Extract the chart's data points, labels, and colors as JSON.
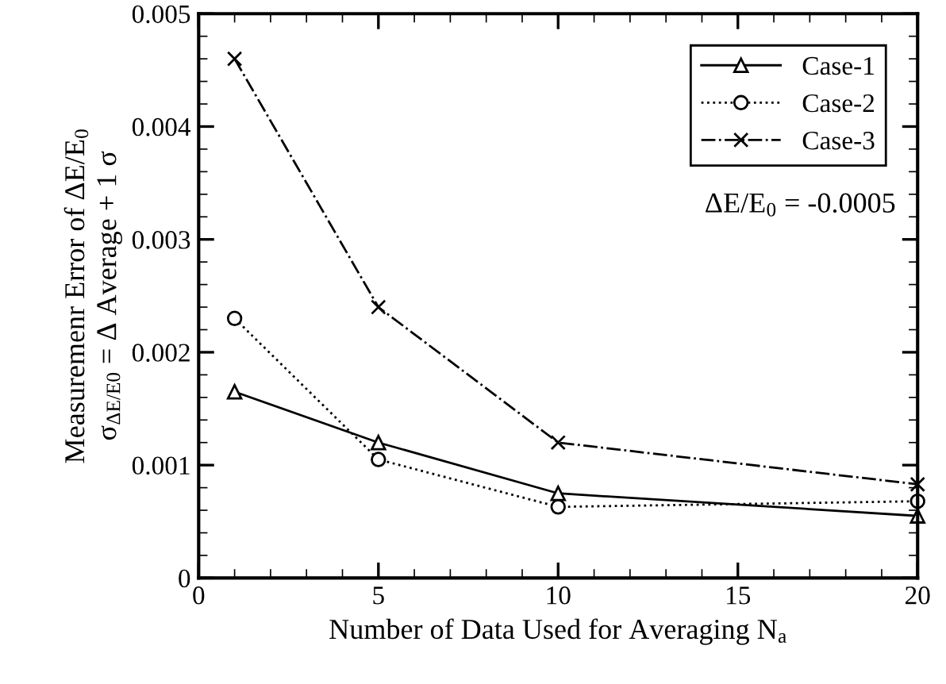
{
  "chart_data": {
    "type": "line",
    "xlabel": "Number of Data Used for Averaging N$_{a}$",
    "ylabel": "Measuremenr Error of ΔE/E$_{0}$\nσ$_{ΔE/E0}$ = Δ Average + 1 σ",
    "x": [
      1,
      5,
      10,
      20
    ],
    "series": [
      {
        "name": "Case-1",
        "color": "#000000",
        "marker": "triangle",
        "line_style": "solid",
        "values": [
          0.00165,
          0.0012,
          0.00075,
          0.00055
        ]
      },
      {
        "name": "Case-2",
        "color": "#000000",
        "marker": "circle",
        "line_style": "dotted",
        "values": [
          0.0023,
          0.00105,
          0.00063,
          0.00068
        ]
      },
      {
        "name": "Case-3",
        "color": "#000000",
        "marker": "cross",
        "line_style": "dashdot",
        "values": [
          0.0046,
          0.0024,
          0.0012,
          0.00083
        ]
      }
    ],
    "xlim": [
      0,
      20
    ],
    "xticks": [
      0,
      5,
      10,
      15,
      20
    ],
    "ylim": [
      0,
      0.005
    ],
    "yticks": [
      0,
      0.001,
      0.002,
      0.003,
      0.004,
      0.005
    ],
    "grid": false,
    "legend": "top right",
    "annotations": [
      "ΔE/E$_{0}$ = -0.0005"
    ]
  }
}
